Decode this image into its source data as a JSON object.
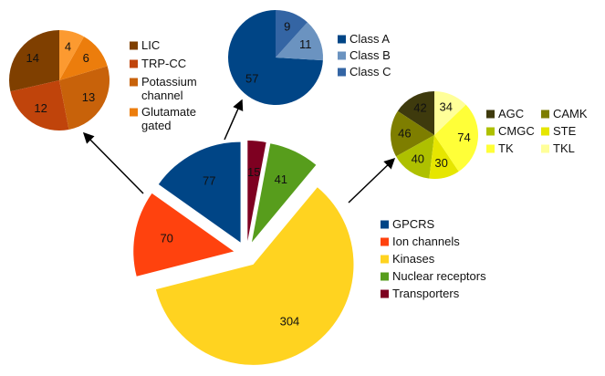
{
  "chart_data": [
    {
      "type": "pie",
      "categories": [
        "GPCRS",
        "Ion channels",
        "Kinases",
        "Nuclear receptors",
        "Transporters"
      ],
      "values": [
        77,
        70,
        304,
        41,
        15
      ],
      "colors": [
        "#004586",
        "#ff420e",
        "#ffd320",
        "#579d1c",
        "#7e0021"
      ]
    },
    {
      "type": "pie",
      "categories": [
        "LIC",
        "TRP-CC",
        "Potassium channel",
        "Glutamate gated",
        null
      ],
      "values": [
        14,
        12,
        13,
        6,
        4
      ],
      "colors": [
        "#7f3f00",
        "#c0440b",
        "#c8620a",
        "#ec7d0c",
        "#fc9a30"
      ]
    },
    {
      "type": "pie",
      "categories": [
        "Class A",
        "Class B",
        "Class C"
      ],
      "values": [
        57,
        11,
        9
      ],
      "colors": [
        "#004586",
        "#6b93c0",
        "#3465a4"
      ]
    },
    {
      "type": "pie",
      "categories": [
        "AGC",
        "CAMK",
        "CMGC",
        "STE",
        "TK",
        "TKL"
      ],
      "values": [
        42,
        46,
        40,
        30,
        74,
        34
      ],
      "colors": [
        "#3e3a0d",
        "#7e7e00",
        "#aec000",
        "#e6e600",
        "#ffff38",
        "#ffff99"
      ]
    }
  ]
}
